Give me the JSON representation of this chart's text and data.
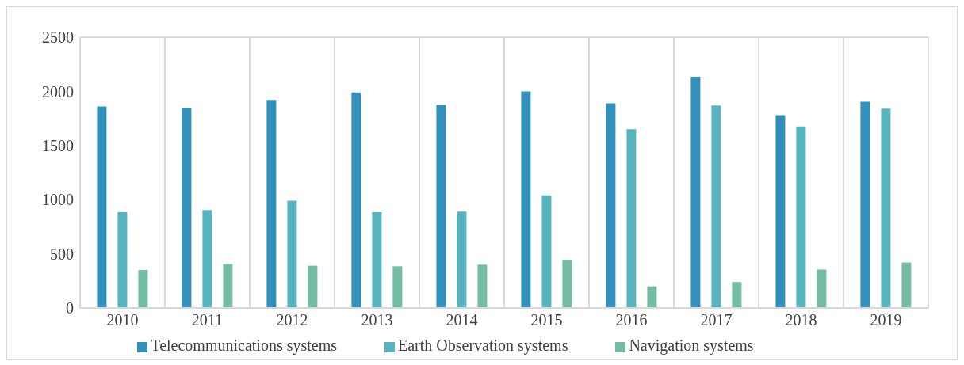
{
  "chart_data": {
    "type": "bar",
    "categories": [
      "2010",
      "2011",
      "2012",
      "2013",
      "2014",
      "2015",
      "2016",
      "2017",
      "2018",
      "2019"
    ],
    "series": [
      {
        "name": "Telecommunications systems",
        "color": "#3291bb",
        "values": [
          1860,
          1850,
          1920,
          1990,
          1875,
          2000,
          1890,
          2135,
          1780,
          1905
        ]
      },
      {
        "name": "Earth Observation systems",
        "color": "#57b4bf",
        "values": [
          885,
          905,
          990,
          885,
          890,
          1040,
          1650,
          1870,
          1675,
          1840
        ]
      },
      {
        "name": "Navigation systems",
        "color": "#74bca3",
        "values": [
          350,
          405,
          390,
          385,
          400,
          445,
          200,
          240,
          355,
          420
        ]
      }
    ],
    "ylim": [
      0,
      2500
    ],
    "yticks": [
      0,
      500,
      1000,
      1500,
      2000,
      2500
    ],
    "grid": true,
    "legend": "bottom"
  }
}
